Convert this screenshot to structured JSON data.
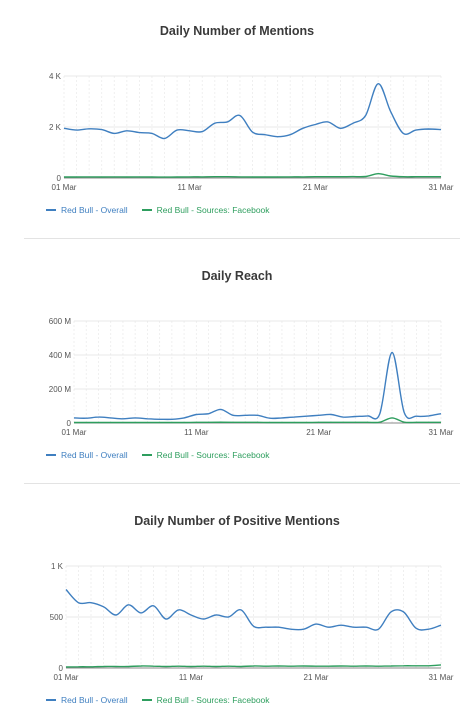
{
  "chart_data": [
    {
      "type": "line",
      "title": "Daily Number of Mentions",
      "x": [
        "01 Mar",
        "02 Mar",
        "03 Mar",
        "04 Mar",
        "05 Mar",
        "06 Mar",
        "07 Mar",
        "08 Mar",
        "09 Mar",
        "10 Mar",
        "11 Mar",
        "12 Mar",
        "13 Mar",
        "14 Mar",
        "15 Mar",
        "16 Mar",
        "17 Mar",
        "18 Mar",
        "19 Mar",
        "20 Mar",
        "21 Mar",
        "22 Mar",
        "23 Mar",
        "24 Mar",
        "25 Mar",
        "26 Mar",
        "27 Mar",
        "28 Mar",
        "29 Mar",
        "30 Mar",
        "31 Mar"
      ],
      "xticks": [
        "01 Mar",
        "11 Mar",
        "21 Mar",
        "31 Mar"
      ],
      "yticks": [
        "0",
        "2 K",
        "4 K"
      ],
      "ylim": [
        0,
        4000
      ],
      "series": [
        {
          "name": "Red Bull - Overall",
          "color": "#3f7fc0",
          "values": [
            1950,
            1880,
            1930,
            1900,
            1750,
            1850,
            1780,
            1750,
            1550,
            1880,
            1850,
            1820,
            2150,
            2200,
            2450,
            1800,
            1700,
            1620,
            1700,
            1950,
            2100,
            2200,
            1950,
            2150,
            2450,
            3700,
            2600,
            1750,
            1880,
            1920,
            1900
          ]
        },
        {
          "name": "Red Bull - Sources: Facebook",
          "color": "#2e9e5e",
          "values": [
            40,
            40,
            45,
            40,
            45,
            40,
            45,
            40,
            35,
            40,
            45,
            45,
            50,
            50,
            45,
            40,
            40,
            40,
            45,
            45,
            50,
            50,
            50,
            55,
            60,
            170,
            80,
            50,
            50,
            50,
            50
          ]
        }
      ],
      "grid": true,
      "legend": "bottom-left"
    },
    {
      "type": "line",
      "title": "Daily Reach",
      "x": [
        "01 Mar",
        "02 Mar",
        "03 Mar",
        "04 Mar",
        "05 Mar",
        "06 Mar",
        "07 Mar",
        "08 Mar",
        "09 Mar",
        "10 Mar",
        "11 Mar",
        "12 Mar",
        "13 Mar",
        "14 Mar",
        "15 Mar",
        "16 Mar",
        "17 Mar",
        "18 Mar",
        "19 Mar",
        "20 Mar",
        "21 Mar",
        "22 Mar",
        "23 Mar",
        "24 Mar",
        "25 Mar",
        "26 Mar",
        "27 Mar",
        "28 Mar",
        "29 Mar",
        "30 Mar",
        "31 Mar"
      ],
      "xticks": [
        "01 Mar",
        "11 Mar",
        "21 Mar",
        "31 Mar"
      ],
      "yticks": [
        "0",
        "200 M",
        "400 M",
        "600 M"
      ],
      "ylim": [
        0,
        600
      ],
      "series": [
        {
          "name": "Red Bull - Overall",
          "color": "#3f7fc0",
          "values": [
            30,
            28,
            35,
            30,
            25,
            30,
            25,
            22,
            22,
            30,
            50,
            55,
            80,
            45,
            45,
            45,
            28,
            30,
            35,
            40,
            45,
            50,
            35,
            38,
            42,
            55,
            415,
            60,
            40,
            42,
            55
          ]
        },
        {
          "name": "Red Bull - Sources: Facebook",
          "color": "#2e9e5e",
          "values": [
            3,
            3,
            3,
            3,
            3,
            3,
            3,
            3,
            3,
            3,
            4,
            4,
            5,
            4,
            4,
            4,
            3,
            3,
            3,
            3,
            4,
            4,
            4,
            4,
            4,
            5,
            30,
            5,
            4,
            4,
            4
          ]
        }
      ],
      "grid": true,
      "legend": "bottom-left"
    },
    {
      "type": "line",
      "title": "Daily Number of Positive Mentions",
      "x": [
        "01 Mar",
        "02 Mar",
        "03 Mar",
        "04 Mar",
        "05 Mar",
        "06 Mar",
        "07 Mar",
        "08 Mar",
        "09 Mar",
        "10 Mar",
        "11 Mar",
        "12 Mar",
        "13 Mar",
        "14 Mar",
        "15 Mar",
        "16 Mar",
        "17 Mar",
        "18 Mar",
        "19 Mar",
        "20 Mar",
        "21 Mar",
        "22 Mar",
        "23 Mar",
        "24 Mar",
        "25 Mar",
        "26 Mar",
        "27 Mar",
        "28 Mar",
        "29 Mar",
        "30 Mar",
        "31 Mar"
      ],
      "xticks": [
        "01 Mar",
        "11 Mar",
        "21 Mar",
        "31 Mar"
      ],
      "yticks": [
        "0",
        "500",
        "1 K"
      ],
      "ylim": [
        0,
        1000
      ],
      "series": [
        {
          "name": "Red Bull - Overall",
          "color": "#3f7fc0",
          "values": [
            770,
            640,
            640,
            600,
            520,
            620,
            540,
            610,
            480,
            570,
            520,
            480,
            520,
            500,
            570,
            410,
            400,
            400,
            380,
            380,
            430,
            400,
            420,
            400,
            400,
            380,
            550,
            550,
            390,
            380,
            420
          ]
        },
        {
          "name": "Red Bull - Sources: Facebook",
          "color": "#2e9e5e",
          "values": [
            10,
            12,
            12,
            15,
            15,
            15,
            20,
            18,
            15,
            18,
            15,
            18,
            15,
            18,
            15,
            20,
            18,
            20,
            18,
            20,
            18,
            18,
            20,
            18,
            20,
            18,
            20,
            22,
            22,
            22,
            30
          ]
        }
      ],
      "grid": true,
      "legend": "bottom-left"
    }
  ]
}
